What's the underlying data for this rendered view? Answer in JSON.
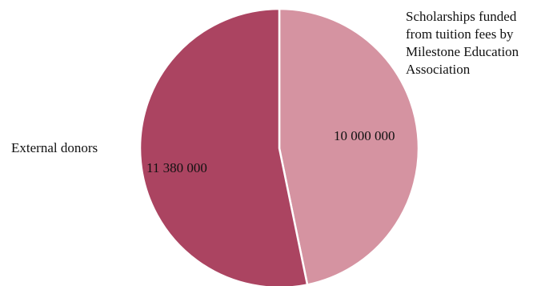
{
  "chart_data": {
    "type": "pie",
    "title": "",
    "slices": [
      {
        "label": "Scholarships funded from tuition fees by Milestone Education Association",
        "value": 10000000,
        "value_label": "10 000 000",
        "color": "#d593a1"
      },
      {
        "label": "External donors",
        "value": 11380000,
        "value_label": "11 380 000",
        "color": "#ab4461"
      }
    ],
    "start_angle": "12 o'clock",
    "direction": "clockwise",
    "legend": "none (labels beside slices)"
  }
}
